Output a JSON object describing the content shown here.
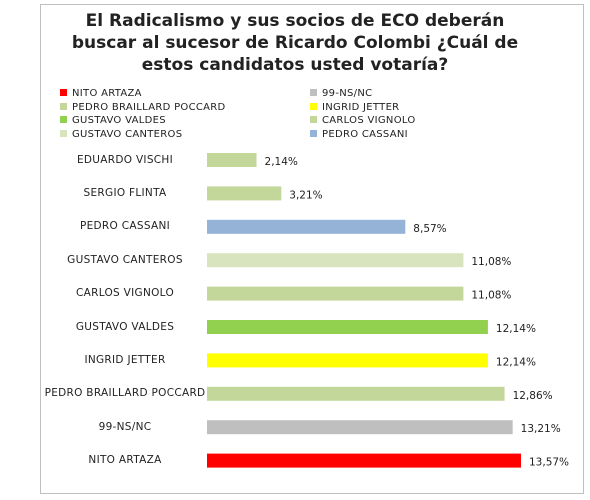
{
  "chart_data": {
    "type": "hbar",
    "title": "El Radicalismo y sus socios de ECO deberán buscar al sucesor de Ricardo Colombi ¿Cuál de estos candidatos usted votaría?",
    "categories": [
      "EDUARDO VISCHI",
      "SERGIO FLINTA",
      "PEDRO CASSANI",
      "GUSTAVO CANTEROS",
      "CARLOS VIGNOLO",
      "GUSTAVO VALDES",
      "INGRID JETTER",
      "PEDRO BRAILLARD POCCARD",
      "99-NS/NC",
      "NITO ARTAZA"
    ],
    "values": [
      2.14,
      3.21,
      8.57,
      11.08,
      11.08,
      12.14,
      12.14,
      12.86,
      13.21,
      13.57
    ],
    "value_labels": [
      "2,14%",
      "3,21%",
      "8,57%",
      "11,08%",
      "11,08%",
      "12,14%",
      "12,14%",
      "12,86%",
      "13,21%",
      "13,57%"
    ],
    "colors": [
      "#c4d79b",
      "#c4d79b",
      "#95b3d7",
      "#d7e4bd",
      "#c4d79b",
      "#92d050",
      "#ffff00",
      "#c4d79b",
      "#bfbfbf",
      "#ff0000"
    ],
    "legend": [
      {
        "name": "NITO ARTAZA",
        "color": "#ff0000"
      },
      {
        "name": "99-NS/NC",
        "color": "#bfbfbf"
      },
      {
        "name": "PEDRO BRAILLARD POCCARD",
        "color": "#c4d79b"
      },
      {
        "name": "INGRID JETTER",
        "color": "#ffff00"
      },
      {
        "name": "GUSTAVO VALDES",
        "color": "#92d050"
      },
      {
        "name": "CARLOS VIGNOLO",
        "color": "#c4d79b"
      },
      {
        "name": "GUSTAVO CANTEROS",
        "color": "#d7e4bd"
      },
      {
        "name": "PEDRO CASSANI",
        "color": "#95b3d7"
      }
    ]
  }
}
